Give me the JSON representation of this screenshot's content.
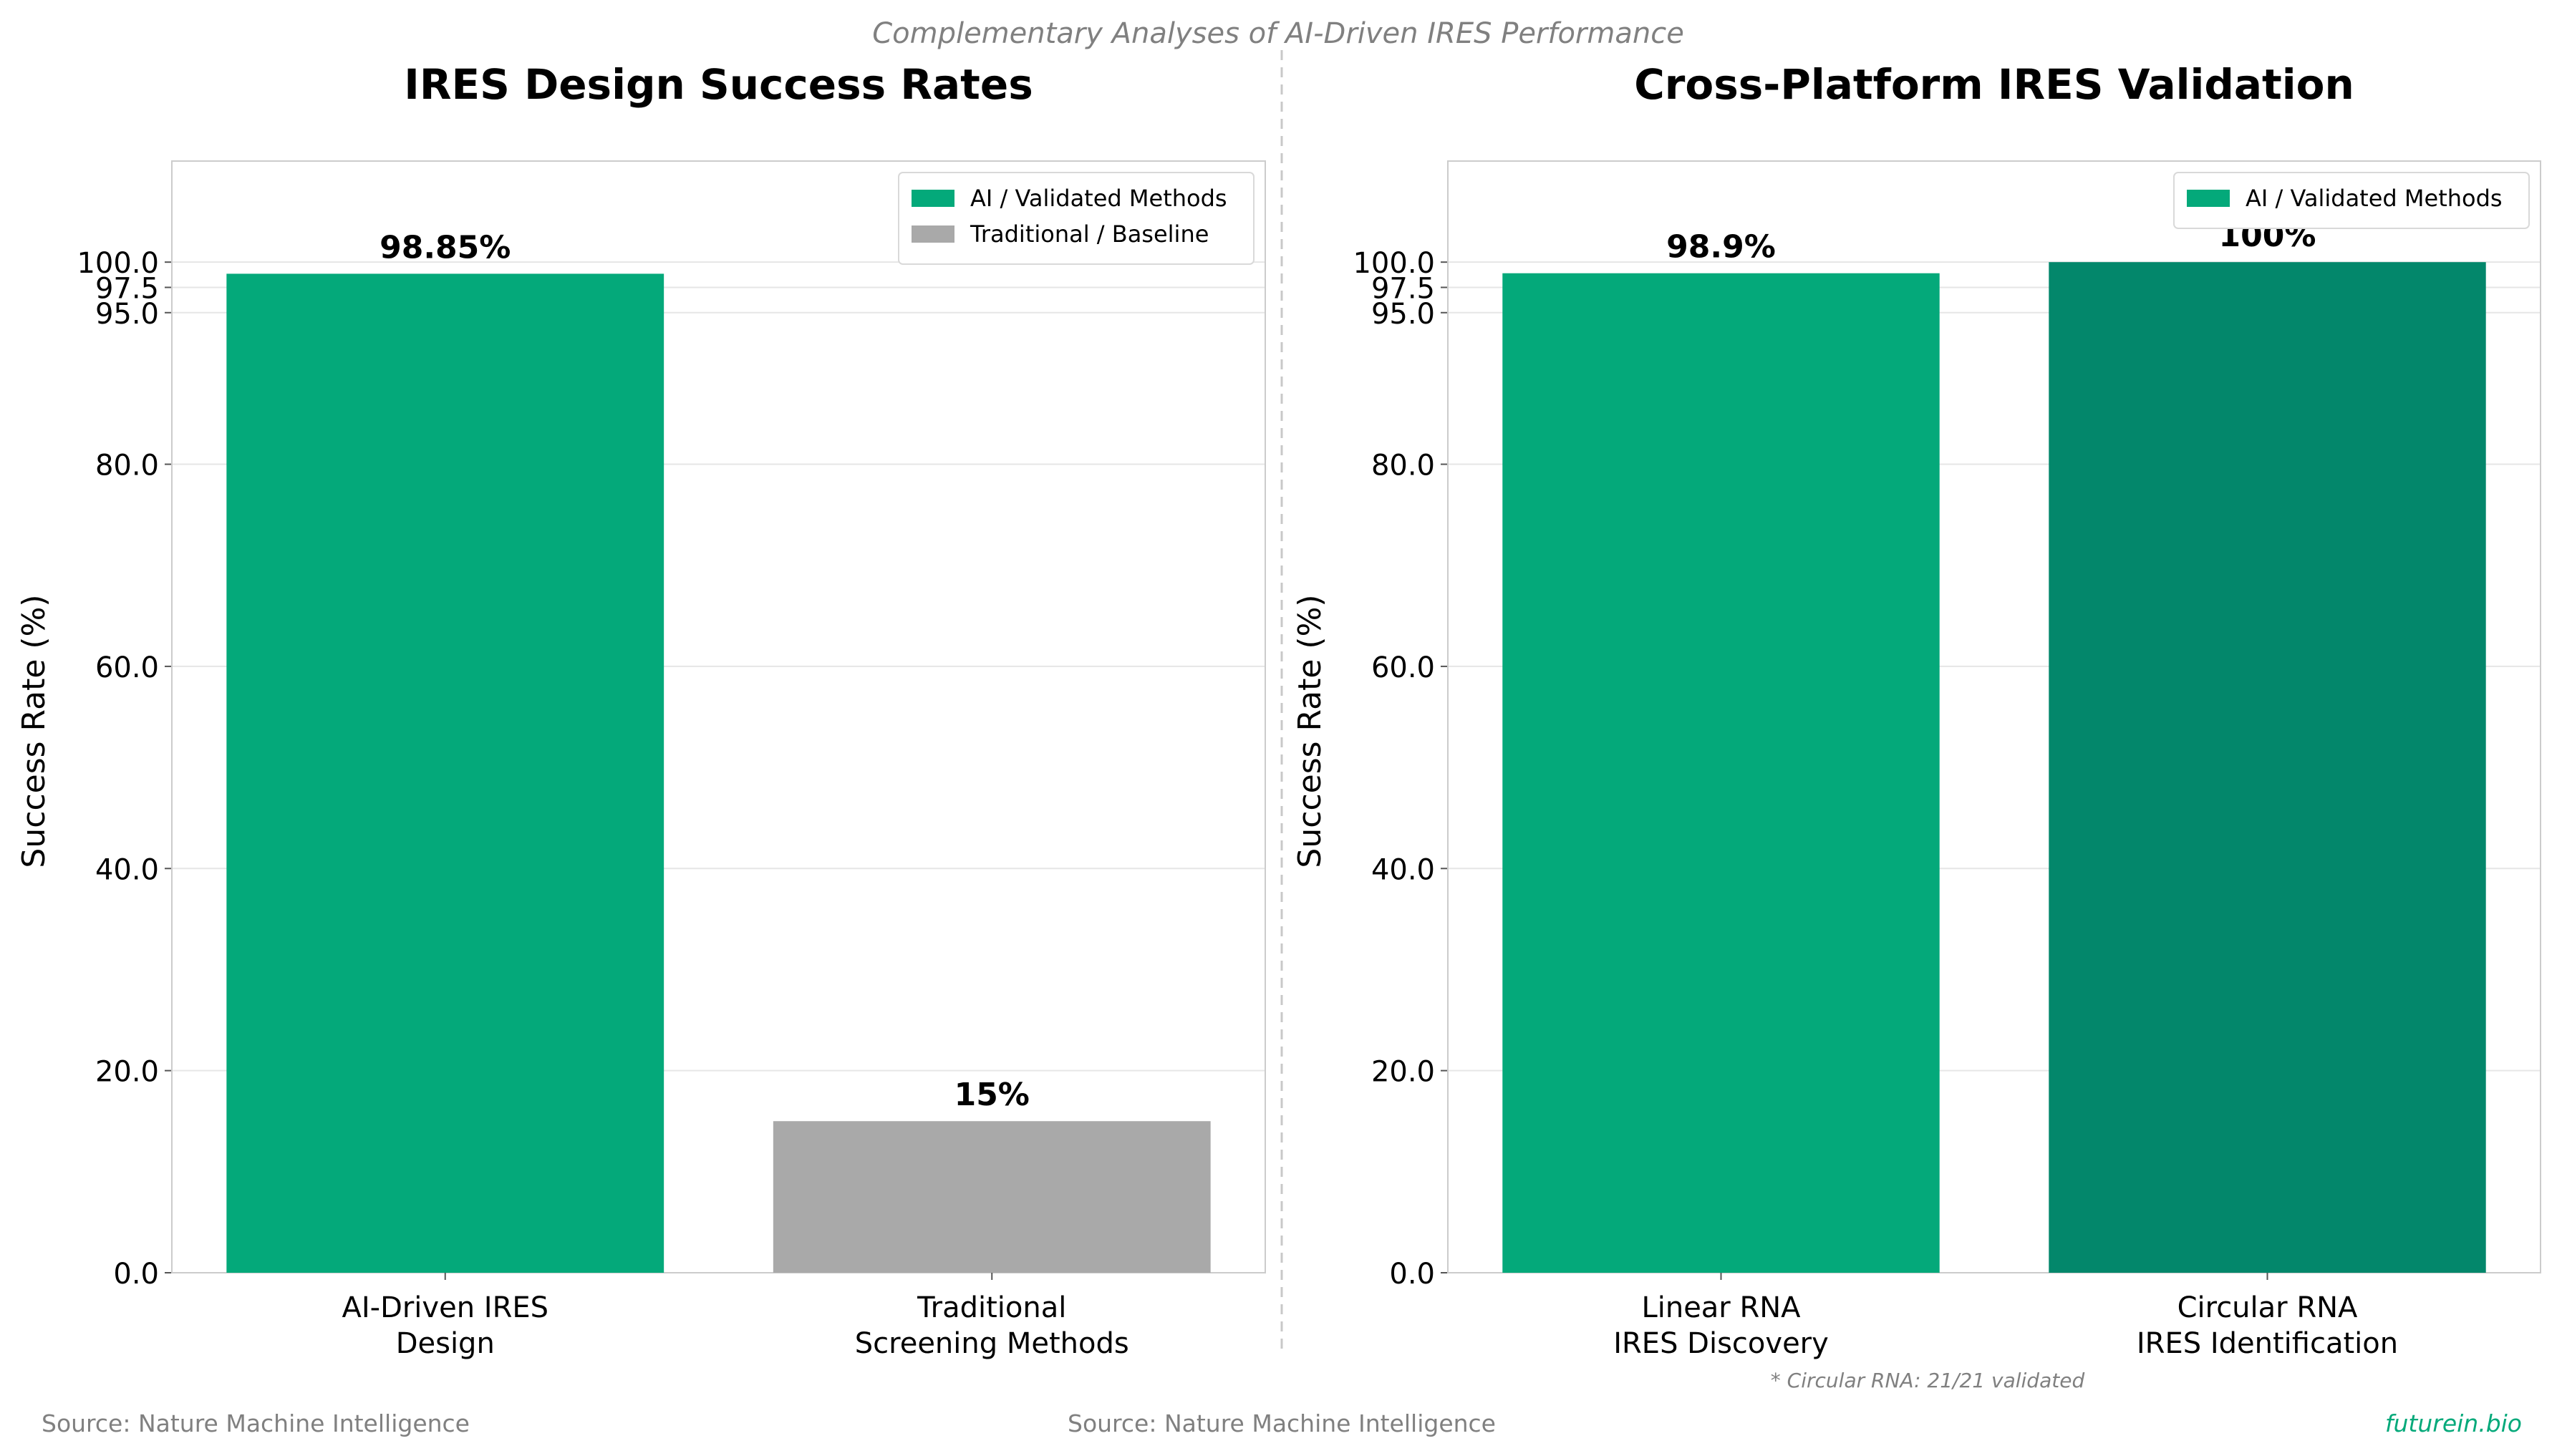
{
  "figure": {
    "suptitle": "Complementary Analyses of AI-Driven IRES Performance",
    "source_left": "Source: Nature Machine Intelligence",
    "source_center": "Source: Nature Machine Intelligence",
    "brand": "futurein.bio",
    "footnote": "* Circular RNA: 21/21 validated"
  },
  "colors": {
    "ai": "#04a97a",
    "ai_dark": "#03876b",
    "baseline": "#a9a9a9",
    "grid": "#e6e6e6",
    "axis": "#cccccc",
    "muted_text": "#808080",
    "brand": "#04a97a",
    "divider": "#c8c8c8"
  },
  "chart_data": [
    {
      "type": "bar",
      "title": "IRES Design Success Rates",
      "ylabel": "Success Rate (%)",
      "xlabel": "",
      "ylim": [
        0,
        110
      ],
      "yticks": [
        0,
        20,
        40,
        60,
        80,
        95,
        97.5,
        100
      ],
      "ytick_labels": [
        "0.0",
        "20.0",
        "40.0",
        "60.0",
        "80.0",
        "95.0",
        "97.5",
        "100.0"
      ],
      "grid": true,
      "legend_position": "top-right",
      "legend": [
        {
          "label": "AI / Validated Methods",
          "color_key": "ai"
        },
        {
          "label": "Traditional / Baseline",
          "color_key": "baseline"
        }
      ],
      "categories": [
        [
          "AI-Driven IRES",
          "Design"
        ],
        [
          "Traditional",
          "Screening Methods"
        ]
      ],
      "values": [
        98.85,
        15
      ],
      "value_labels": [
        "98.85%",
        "15%"
      ],
      "bar_color_keys": [
        "ai",
        "baseline"
      ]
    },
    {
      "type": "bar",
      "title": "Cross-Platform IRES Validation",
      "ylabel": "Success Rate (%)",
      "xlabel": "",
      "ylim": [
        0,
        110
      ],
      "yticks": [
        0,
        20,
        40,
        60,
        80,
        95,
        97.5,
        100
      ],
      "ytick_labels": [
        "0.0",
        "20.0",
        "40.0",
        "60.0",
        "80.0",
        "95.0",
        "97.5",
        "100.0"
      ],
      "grid": true,
      "legend_position": "top-right",
      "legend": [
        {
          "label": "AI / Validated Methods",
          "color_key": "ai"
        }
      ],
      "categories": [
        [
          "Linear RNA",
          "IRES Discovery"
        ],
        [
          "Circular RNA",
          "IRES Identification"
        ]
      ],
      "values": [
        98.9,
        100
      ],
      "value_labels": [
        "98.9%",
        "100%"
      ],
      "bar_color_keys": [
        "ai",
        "ai_dark"
      ]
    }
  ]
}
